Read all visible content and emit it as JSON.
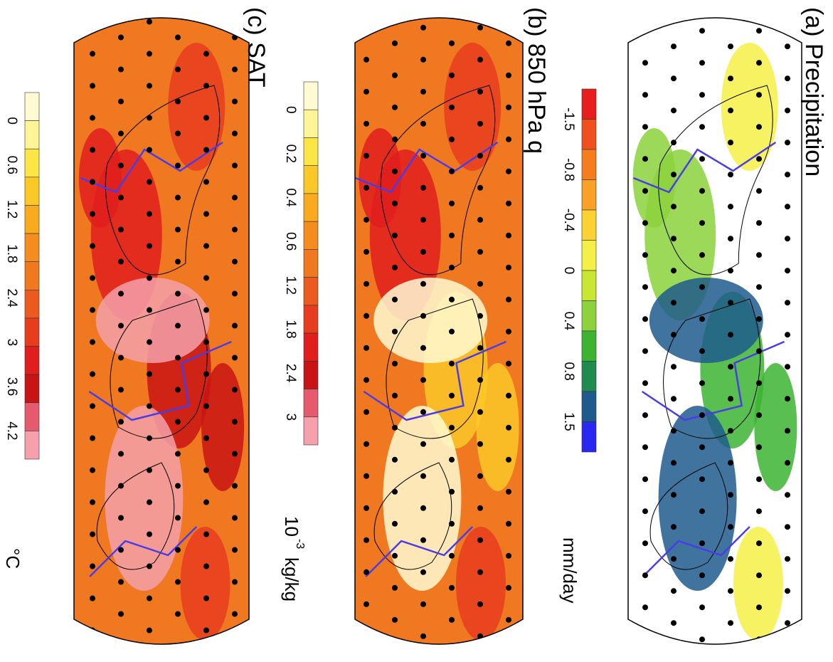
{
  "panels": [
    {
      "title": "(a) Precipitation",
      "unit": "mm/day",
      "colorbar": {
        "labels": [
          -1.5,
          -0.8,
          -0.4,
          0,
          0.4,
          0.8,
          1.5
        ],
        "colors": [
          "#e81e1e",
          "#f0501e",
          "#f57d1e",
          "#f9a028",
          "#fcd232",
          "#f5f046",
          "#c8e632",
          "#8cd23c",
          "#3cb432",
          "#1e8c50",
          "#1e5a8c",
          "#2828f0"
        ]
      },
      "base": "#ffffff",
      "blobs": [
        "#f5f046",
        "#8cd23c",
        "#3cb432",
        "#1e5a8c"
      ]
    },
    {
      "title": "(b) 850 hPa q",
      "unit_base": "10",
      "unit_exp": "-3",
      "unit": "kg/kg",
      "colorbar": {
        "labels": [
          0,
          0.2,
          0.4,
          0.6,
          1.2,
          1.8,
          2.4,
          3
        ],
        "colors": [
          "#fffad2",
          "#fff596",
          "#fce646",
          "#fcc828",
          "#f9aa1e",
          "#f58c1e",
          "#f0781e",
          "#eb5a1e",
          "#e83c1e",
          "#e01e1e",
          "#c81414",
          "#e65a6e",
          "#f5a0aa"
        ]
      },
      "base": "#f07820",
      "blobs": [
        "#e83c1e",
        "#e01e1e",
        "#fcc828",
        "#fffad2"
      ]
    },
    {
      "title": "(c) SAT",
      "unit": "°C",
      "colorbar": {
        "labels": [
          0,
          0.6,
          1.2,
          1.8,
          2.4,
          3,
          3.6,
          4.2
        ],
        "colors": [
          "#fffad2",
          "#fff596",
          "#fce646",
          "#fcc828",
          "#f9aa1e",
          "#f58c1e",
          "#f0781e",
          "#eb5a1e",
          "#e83c1e",
          "#e01e1e",
          "#c81414",
          "#e65a6e",
          "#f5a0aa"
        ]
      },
      "base": "#f07820",
      "blobs": [
        "#e83c1e",
        "#e01e1e",
        "#c81414",
        "#f5a0aa"
      ]
    }
  ]
}
